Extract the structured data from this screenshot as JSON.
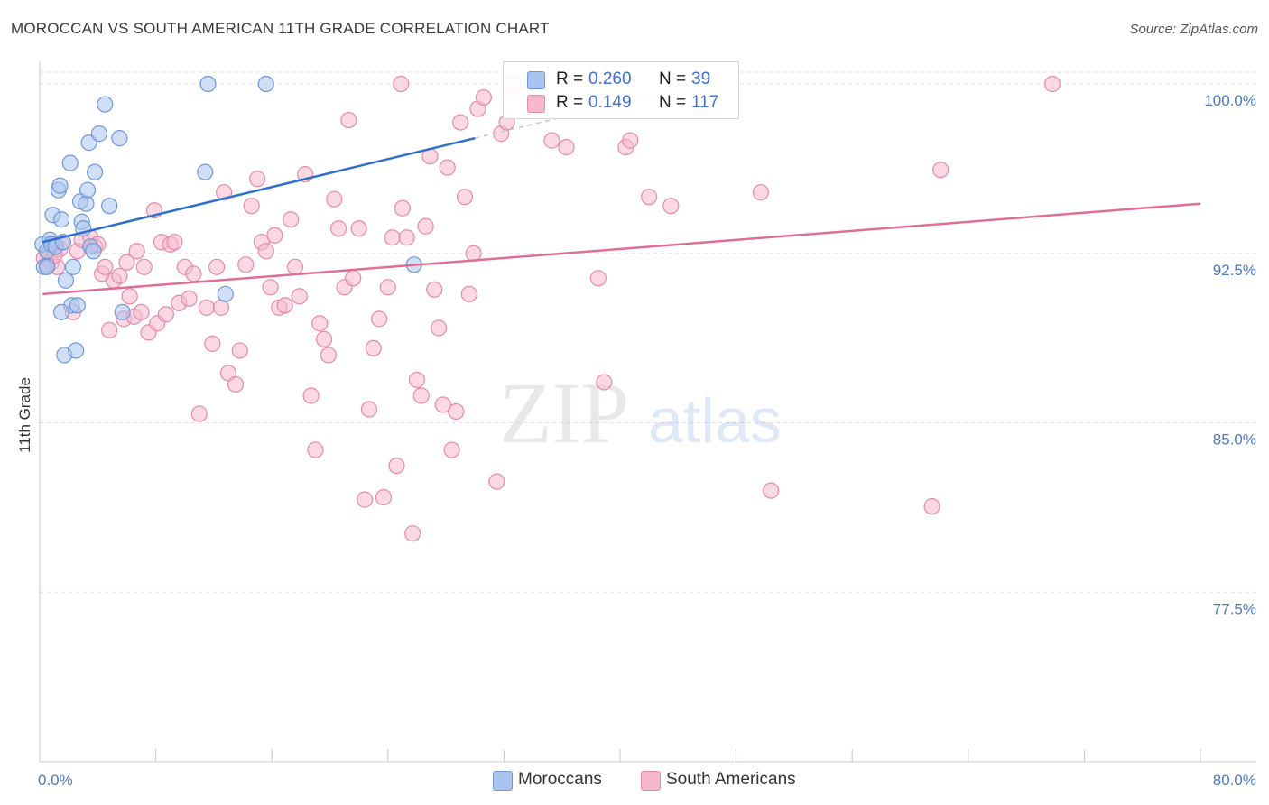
{
  "title": "MOROCCAN VS SOUTH AMERICAN 11TH GRADE CORRELATION CHART",
  "source": "Source: ZipAtlas.com",
  "watermark": {
    "zip": "ZIP",
    "atlas": "atlas"
  },
  "legend": {
    "rows": [
      {
        "r_label": "R =",
        "r_value": "0.260",
        "n_label": "N =",
        "n_value": "39",
        "color": "#a9c4ee",
        "border": "#6f98d8"
      },
      {
        "r_label": "R =",
        "r_value": "0.149",
        "n_label": "N =",
        "n_value": "117",
        "color": "#f6b9cc",
        "border": "#e58aa8"
      }
    ]
  },
  "bottom_legend": [
    {
      "label": "Moroccans",
      "color": "#a9c4ee",
      "border": "#6f98d8"
    },
    {
      "label": "South Americans",
      "color": "#f6b9cc",
      "border": "#e58aa8"
    }
  ],
  "chart_data": {
    "type": "scatter",
    "title": "MOROCCAN VS SOUTH AMERICAN 11TH GRADE CORRELATION CHART",
    "xlabel": "",
    "ylabel": "11th Grade",
    "xlim": [
      0,
      80
    ],
    "ylim": [
      70.0,
      101.0
    ],
    "x_tick_labels": [
      "0.0%",
      "80.0%"
    ],
    "y_tick_labels": [
      "100.0%",
      "92.5%",
      "85.0%",
      "77.5%"
    ],
    "y_tick_values": [
      100.0,
      92.5,
      85.0,
      77.5
    ],
    "grid": true,
    "legend_position": "top-center",
    "series": [
      {
        "name": "Moroccans",
        "color": "#6f98d8",
        "fill": "#a9c4ee",
        "trend": {
          "x": [
            0.2,
            30.0
          ],
          "y": [
            93.0,
            97.6
          ],
          "color": "#2f6fd0"
        },
        "points": [
          [
            0.2,
            92.9
          ],
          [
            0.3,
            91.9
          ],
          [
            0.5,
            92.6
          ],
          [
            0.5,
            91.9
          ],
          [
            0.7,
            93.1
          ],
          [
            0.8,
            92.9
          ],
          [
            0.9,
            94.2
          ],
          [
            1.1,
            92.8
          ],
          [
            1.3,
            95.3
          ],
          [
            1.4,
            95.5
          ],
          [
            1.5,
            94.0
          ],
          [
            1.6,
            93.0
          ],
          [
            1.7,
            88.0
          ],
          [
            1.8,
            91.3
          ],
          [
            2.1,
            96.5
          ],
          [
            2.2,
            90.2
          ],
          [
            2.3,
            91.9
          ],
          [
            2.5,
            88.2
          ],
          [
            2.6,
            90.2
          ],
          [
            2.8,
            94.8
          ],
          [
            2.9,
            93.9
          ],
          [
            3.0,
            93.6
          ],
          [
            3.2,
            94.7
          ],
          [
            3.3,
            95.3
          ],
          [
            3.4,
            97.4
          ],
          [
            3.5,
            92.8
          ],
          [
            3.7,
            92.6
          ],
          [
            3.8,
            96.1
          ],
          [
            4.1,
            97.8
          ],
          [
            4.5,
            99.1
          ],
          [
            4.8,
            94.6
          ],
          [
            5.5,
            97.6
          ],
          [
            5.7,
            89.9
          ],
          [
            11.4,
            96.1
          ],
          [
            11.6,
            100.0
          ],
          [
            12.8,
            90.7
          ],
          [
            15.6,
            100.0
          ],
          [
            25.8,
            92.0
          ],
          [
            1.5,
            89.9
          ]
        ]
      },
      {
        "name": "South Americans",
        "color": "#e58aa8",
        "fill": "#f6b9cc",
        "trend": {
          "x": [
            0.2,
            80.0
          ],
          "y": [
            90.7,
            94.7
          ],
          "color": "#e06f97"
        },
        "points": [
          [
            0.3,
            92.3
          ],
          [
            0.6,
            92.5
          ],
          [
            0.8,
            92.1
          ],
          [
            1.0,
            92.9
          ],
          [
            1.2,
            91.9
          ],
          [
            1.4,
            92.7
          ],
          [
            1.6,
            93.0
          ],
          [
            2.6,
            92.6
          ],
          [
            2.9,
            93.1
          ],
          [
            3.5,
            93.2
          ],
          [
            3.8,
            92.8
          ],
          [
            4.0,
            92.9
          ],
          [
            4.3,
            91.6
          ],
          [
            4.5,
            91.9
          ],
          [
            4.8,
            89.1
          ],
          [
            5.1,
            91.3
          ],
          [
            5.5,
            91.5
          ],
          [
            5.8,
            89.6
          ],
          [
            6.0,
            92.1
          ],
          [
            6.2,
            90.6
          ],
          [
            6.5,
            89.7
          ],
          [
            6.7,
            92.6
          ],
          [
            7.0,
            89.9
          ],
          [
            7.2,
            91.9
          ],
          [
            7.5,
            89.0
          ],
          [
            7.9,
            94.4
          ],
          [
            8.1,
            89.4
          ],
          [
            8.4,
            93.0
          ],
          [
            8.7,
            89.8
          ],
          [
            9.0,
            92.9
          ],
          [
            9.3,
            93.0
          ],
          [
            9.6,
            90.3
          ],
          [
            10.0,
            91.9
          ],
          [
            10.3,
            90.5
          ],
          [
            10.6,
            91.6
          ],
          [
            11.0,
            85.4
          ],
          [
            11.5,
            90.1
          ],
          [
            11.9,
            88.5
          ],
          [
            12.2,
            91.9
          ],
          [
            12.5,
            90.1
          ],
          [
            12.7,
            95.2
          ],
          [
            13.0,
            87.2
          ],
          [
            13.5,
            86.7
          ],
          [
            13.8,
            88.2
          ],
          [
            14.2,
            92.0
          ],
          [
            14.6,
            94.6
          ],
          [
            15.0,
            95.8
          ],
          [
            15.3,
            93.0
          ],
          [
            15.6,
            92.6
          ],
          [
            15.9,
            91.0
          ],
          [
            16.2,
            93.3
          ],
          [
            16.5,
            90.1
          ],
          [
            16.9,
            90.2
          ],
          [
            17.3,
            94.0
          ],
          [
            17.6,
            91.9
          ],
          [
            17.9,
            90.6
          ],
          [
            18.3,
            96.0
          ],
          [
            18.7,
            86.2
          ],
          [
            19.0,
            83.8
          ],
          [
            19.3,
            89.4
          ],
          [
            19.6,
            88.7
          ],
          [
            19.9,
            88.0
          ],
          [
            20.3,
            94.9
          ],
          [
            20.6,
            93.6
          ],
          [
            21.0,
            91.0
          ],
          [
            21.3,
            98.4
          ],
          [
            21.6,
            91.4
          ],
          [
            22.0,
            93.6
          ],
          [
            22.4,
            81.6
          ],
          [
            22.7,
            85.6
          ],
          [
            23.0,
            88.3
          ],
          [
            23.4,
            89.6
          ],
          [
            23.7,
            81.7
          ],
          [
            24.0,
            91.0
          ],
          [
            24.3,
            93.2
          ],
          [
            24.6,
            83.1
          ],
          [
            25.0,
            94.5
          ],
          [
            25.3,
            93.2
          ],
          [
            25.7,
            80.1
          ],
          [
            26.0,
            86.9
          ],
          [
            26.3,
            86.2
          ],
          [
            26.6,
            93.7
          ],
          [
            26.9,
            96.8
          ],
          [
            27.2,
            90.9
          ],
          [
            27.5,
            89.2
          ],
          [
            27.8,
            85.8
          ],
          [
            28.1,
            96.3
          ],
          [
            28.4,
            83.8
          ],
          [
            28.7,
            85.5
          ],
          [
            29.0,
            98.3
          ],
          [
            29.3,
            95.0
          ],
          [
            29.6,
            90.7
          ],
          [
            29.9,
            92.5
          ],
          [
            30.2,
            98.9
          ],
          [
            30.6,
            99.4
          ],
          [
            31.5,
            82.4
          ],
          [
            31.8,
            97.8
          ],
          [
            32.2,
            98.3
          ],
          [
            32.6,
            100.0
          ],
          [
            34.0,
            100.0
          ],
          [
            35.3,
            97.5
          ],
          [
            36.3,
            97.2
          ],
          [
            38.5,
            91.4
          ],
          [
            38.9,
            86.8
          ],
          [
            40.4,
            97.2
          ],
          [
            40.7,
            97.5
          ],
          [
            42.0,
            95.0
          ],
          [
            43.5,
            94.6
          ],
          [
            49.7,
            95.2
          ],
          [
            50.4,
            82.0
          ],
          [
            61.5,
            81.3
          ],
          [
            62.1,
            96.2
          ],
          [
            69.8,
            100.0
          ],
          [
            1.0,
            92.4
          ],
          [
            2.3,
            89.9
          ],
          [
            0.5,
            92.0
          ],
          [
            24.9,
            100.0
          ]
        ]
      }
    ]
  }
}
